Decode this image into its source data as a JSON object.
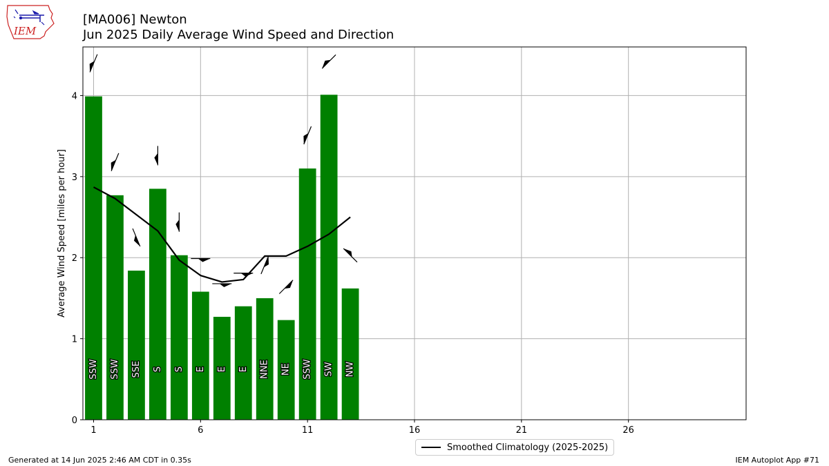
{
  "header": {
    "title": "[MA006] Newton",
    "subtitle": "Jun 2025 Daily Average Wind Speed and Direction",
    "logo_text": "IEM"
  },
  "footer": {
    "generated": "Generated at 14 Jun 2025 2:46 AM CDT in 0.35s",
    "app": "IEM Autoplot App #71"
  },
  "legend": {
    "climatology_label": "Smoothed Climatology (2025-2025)"
  },
  "colors": {
    "bar": "#008000",
    "climatology": "#000000",
    "grid": "#b0b0b0",
    "logo_red": "#cc2222",
    "logo_blue": "#1a1aaa"
  },
  "chart_data": {
    "type": "bar",
    "ylabel": "Average Wind Speed [miles per hour]",
    "xlim": [
      0.5,
      31.5
    ],
    "ylim": [
      0,
      4.6
    ],
    "xticks": [
      1,
      6,
      11,
      16,
      21,
      26
    ],
    "yticks": [
      0,
      1,
      2,
      3,
      4
    ],
    "grid": true,
    "legend_position": "below-center",
    "days": [
      1,
      2,
      3,
      4,
      5,
      6,
      7,
      8,
      9,
      10,
      11,
      12,
      13
    ],
    "series": [
      {
        "name": "Daily Average Wind Speed",
        "values": [
          3.99,
          2.77,
          1.84,
          2.85,
          2.03,
          1.58,
          1.27,
          1.4,
          1.5,
          1.23,
          3.1,
          4.01,
          1.62
        ],
        "directions": [
          "SSW",
          "SSW",
          "SSE",
          "S",
          "S",
          "E",
          "E",
          "E",
          "NNE",
          "NE",
          "SSW",
          "SW",
          "NW"
        ]
      },
      {
        "name": "Smoothed Climatology (2025-2025)",
        "values": [
          2.87,
          2.73,
          2.53,
          2.33,
          1.97,
          1.78,
          1.7,
          1.73,
          2.02,
          2.02,
          2.14,
          2.29,
          2.5
        ]
      }
    ]
  }
}
